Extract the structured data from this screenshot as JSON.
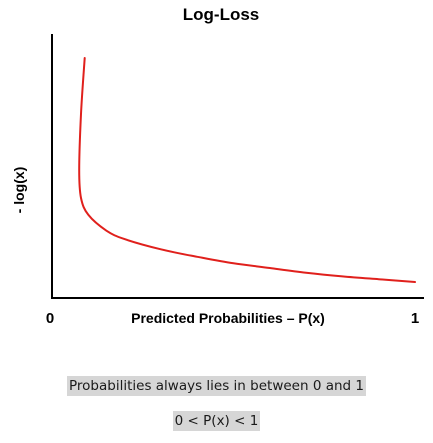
{
  "chart_data": {
    "type": "line",
    "title": "Log-Loss",
    "xlabel": "Predicted Probabilities – P(x)",
    "ylabel": "- log(x)",
    "x_ticks": [
      "0",
      "1"
    ],
    "xlim": [
      0,
      1
    ],
    "grid": false,
    "legend": "none",
    "series": [
      {
        "color": "#e0201c",
        "x": [
          0.09,
          0.08,
          0.075,
          0.08,
          0.1,
          0.15,
          0.2,
          0.3,
          0.4,
          0.5,
          0.6,
          0.7,
          0.8,
          0.9,
          1.0
        ],
        "y": [
          2.4,
          1.8,
          1.2,
          0.9,
          0.72,
          0.55,
          0.46,
          0.35,
          0.27,
          0.2,
          0.15,
          0.1,
          0.06,
          0.03,
          0.0
        ]
      }
    ]
  },
  "notes": {
    "line1": "Probabilities always lies in between 0 and 1",
    "line2": "0 < P(x) < 1"
  }
}
